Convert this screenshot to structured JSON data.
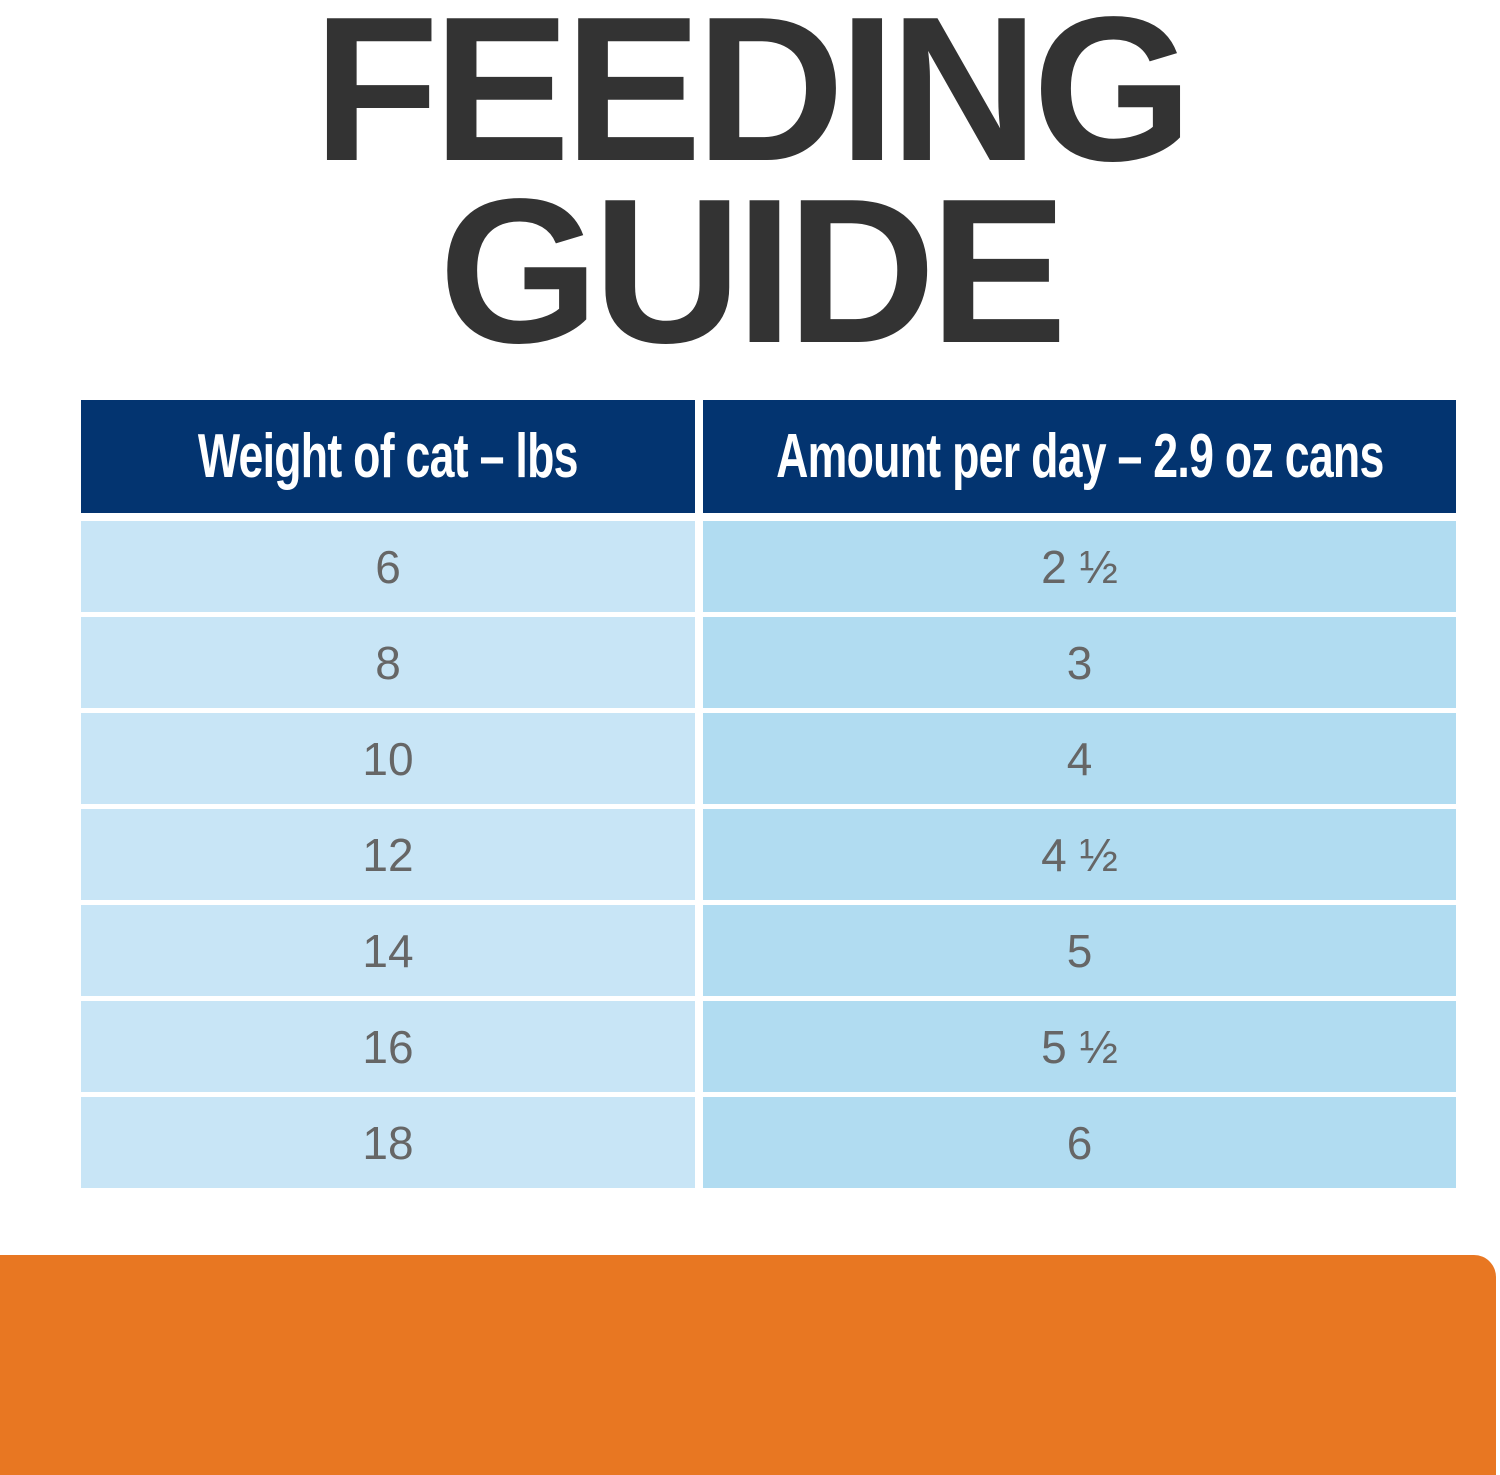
{
  "title": {
    "line1": "FEEDING",
    "line2": "GUIDE"
  },
  "table": {
    "headers": [
      "Weight of cat – lbs",
      "Amount per day – 2.9 oz cans"
    ],
    "rows": [
      [
        "6",
        "2 ½"
      ],
      [
        "8",
        "3"
      ],
      [
        "10",
        "4"
      ],
      [
        "12",
        "4 ½"
      ],
      [
        "14",
        "5"
      ],
      [
        "16",
        "5 ½"
      ],
      [
        "18",
        "6"
      ]
    ]
  },
  "colors": {
    "header": "#033470",
    "left_cell": "#c8e5f6",
    "right_cell": "#b1dcf1",
    "accent_bar": "#e87722",
    "title": "#333333"
  }
}
